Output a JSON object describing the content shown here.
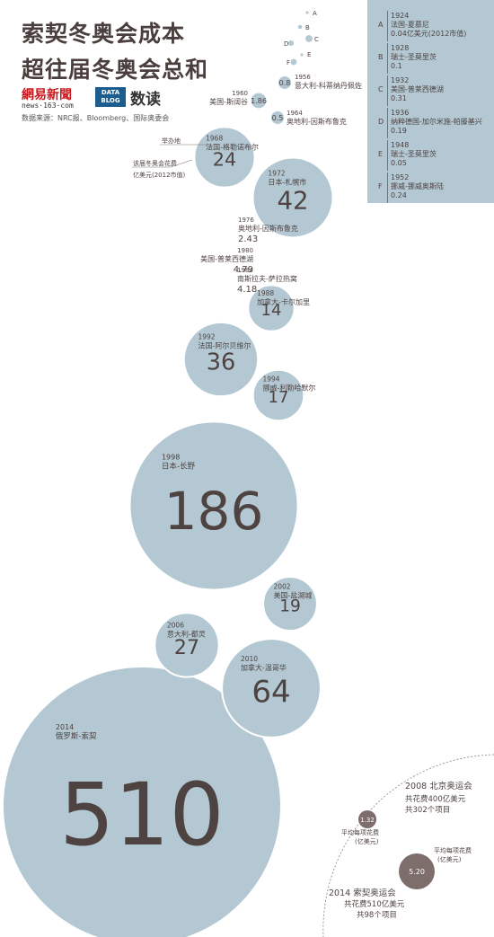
{
  "title_lines": [
    "索契冬奥会成本",
    "超往届冬奥会总和"
  ],
  "logos": {
    "netease_a": "網易",
    "netease_b": "新聞",
    "netease_url": "news·163·com",
    "datablog": "DATA BLOG",
    "shudu": "数读"
  },
  "source": "数据来源：NRC报、Bloomberg、国际奥委会",
  "colors": {
    "bubble": "#b3c8d3",
    "text": "#4e4341",
    "brown": "#7d6e6c",
    "title": "#4a3f3c"
  },
  "host_label": "举办地",
  "cost_label_lines": [
    "该届冬奥会花费",
    "亿美元(2012市值)"
  ],
  "chart_data": {
    "type": "bubble",
    "unit": "亿美元(2012市值)",
    "small_points": [
      {
        "letter": "A",
        "year": "1924",
        "place": "法国-夏慕尼",
        "value_text": "0.04亿美元(2012市值)",
        "value": 0.04
      },
      {
        "letter": "B",
        "year": "1928",
        "place": "瑞士-圣莫里茨",
        "value_text": "0.1",
        "value": 0.1
      },
      {
        "letter": "C",
        "year": "1932",
        "place": "美国-普莱西德湖",
        "value_text": "0.31",
        "value": 0.31
      },
      {
        "letter": "D",
        "year": "1936",
        "place": "纳粹德国-加尔米施-帕滕基兴",
        "value_text": "0.19",
        "value": 0.19
      },
      {
        "letter": "E",
        "year": "1948",
        "place": "瑞士-圣莫里茨",
        "value_text": "0.05",
        "value": 0.05
      },
      {
        "letter": "F",
        "year": "1952",
        "place": "挪威-挪威奥斯陆",
        "value_text": "0.24",
        "value": 0.24
      }
    ],
    "games": [
      {
        "year": "1956",
        "place": "意大利-科蒂纳丹佩佐",
        "value": 0.8,
        "value_text": "0.8"
      },
      {
        "year": "1960",
        "place": "美国-斯阔谷",
        "value": 1.86,
        "value_text": "1.86"
      },
      {
        "year": "1964",
        "place": "奥地利-因斯布鲁克",
        "value": 0.5,
        "value_text": "0.5"
      },
      {
        "year": "1968",
        "place": "法国-格勒诺布尔",
        "value": 24,
        "value_text": "24"
      },
      {
        "year": "1972",
        "place": "日本-札幌市",
        "value": 42,
        "value_text": "42"
      },
      {
        "year": "1976",
        "place": "奥地利-因斯布鲁克",
        "value": 2.43,
        "value_text": "2.43"
      },
      {
        "year": "1980",
        "place": "美国-普莱西德湖",
        "value": 4.79,
        "value_text": "4.79"
      },
      {
        "year": "1984",
        "place": "南斯拉夫-萨拉热窝",
        "value": 4.18,
        "value_text": "4.18"
      },
      {
        "year": "1988",
        "place": "加拿大-卡尔加里",
        "value": 14,
        "value_text": "14"
      },
      {
        "year": "1992",
        "place": "法国-阿尔贝维尔",
        "value": 36,
        "value_text": "36"
      },
      {
        "year": "1994",
        "place": "挪威-利勒哈默尔",
        "value": 17,
        "value_text": "17"
      },
      {
        "year": "1998",
        "place": "日本-长野",
        "value": 186,
        "value_text": "186"
      },
      {
        "year": "2002",
        "place": "美国-盐湖城",
        "value": 19,
        "value_text": "19"
      },
      {
        "year": "2006",
        "place": "意大利-都灵",
        "value": 27,
        "value_text": "27"
      },
      {
        "year": "2010",
        "place": "加拿大-温哥华",
        "value": 64,
        "value_text": "64"
      },
      {
        "year": "2014",
        "place": "俄罗斯-索契",
        "value": 510,
        "value_text": "510"
      }
    ],
    "comparison": {
      "beijing": {
        "lines": [
          "2008 北京奥运会",
          "共花费400亿美元",
          "共302个项目"
        ],
        "per_event_label": [
          "平均每项花费",
          "(亿美元)"
        ],
        "per_event": 1.32,
        "per_event_text": "1.32"
      },
      "sochi": {
        "lines": [
          "2014 索契奥运会",
          "共花费510亿美元",
          "共98个项目"
        ],
        "per_event_label": [
          "平均每项花费",
          "(亿美元)"
        ],
        "per_event": 5.2,
        "per_event_text": "5.20"
      }
    }
  }
}
